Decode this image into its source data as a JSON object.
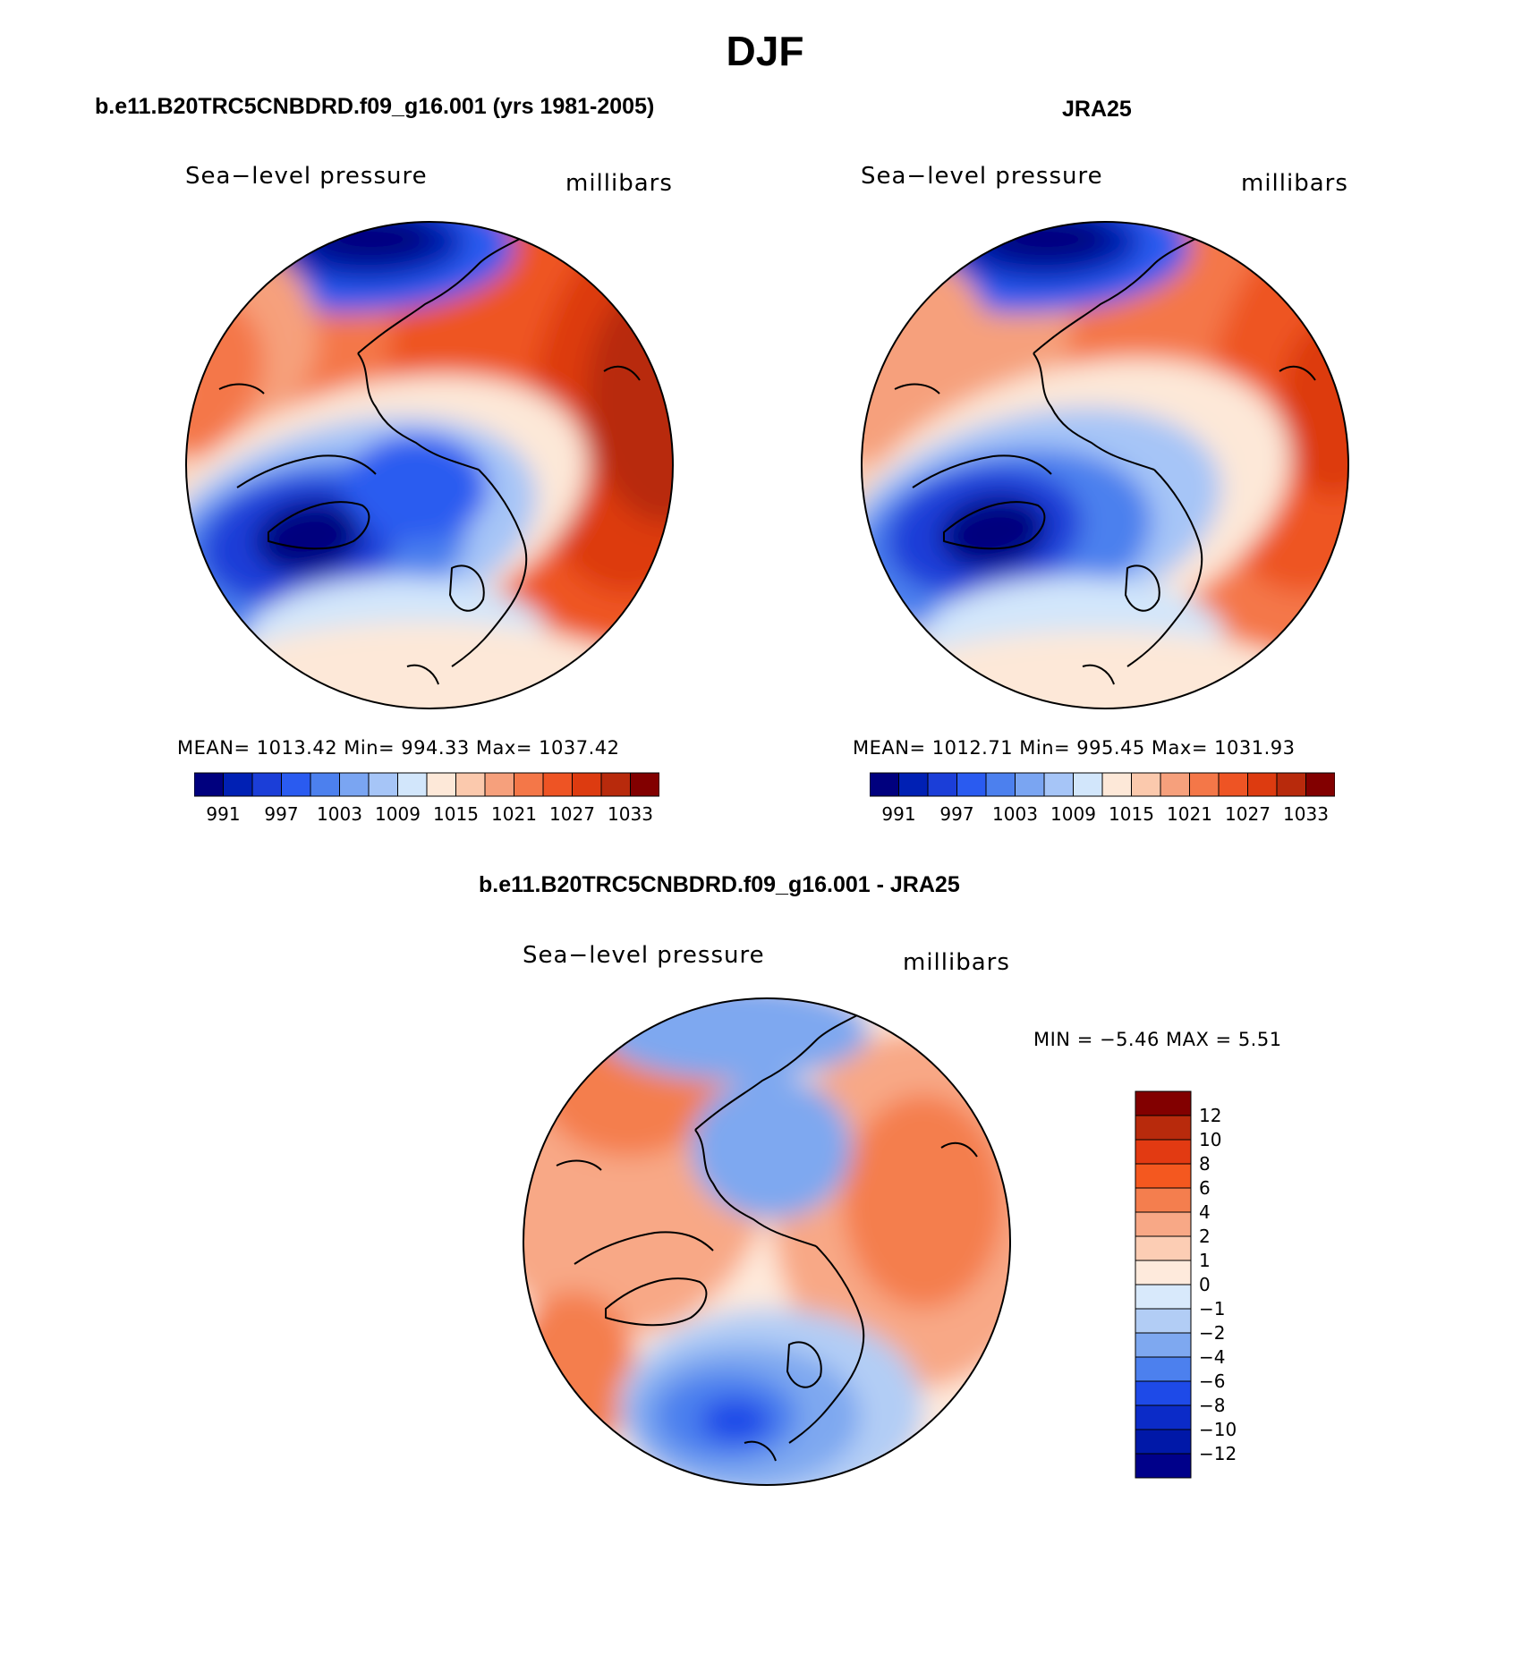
{
  "title": "DJF",
  "maps": [
    {
      "panel_title": "b.e11.B20TRC5CNBDRD.f09_g16.001 (yrs 1981-2005)",
      "variable": "Sea−level pressure",
      "units": "millibars",
      "stats": "MEAN= 1013.42   Min= 994.33   Max= 1037.42",
      "colorbar_labels": [
        "991",
        "997",
        "1003",
        "1009",
        "1015",
        "1021",
        "1027",
        "1033"
      ]
    },
    {
      "panel_title": "JRA25",
      "variable": "Sea−level pressure",
      "units": "millibars",
      "stats": "MEAN= 1012.71   Min= 995.45   Max= 1031.93",
      "colorbar_labels": [
        "991",
        "997",
        "1003",
        "1009",
        "1015",
        "1021",
        "1027",
        "1033"
      ]
    },
    {
      "panel_title": "b.e11.B20TRC5CNBDRD.f09_g16.001 - JRA25",
      "variable": "Sea−level pressure",
      "units": "millibars",
      "stats": "MIN =   −5.46  MAX =     5.51",
      "colorbar_labels": [
        "12",
        "10",
        "8",
        "6",
        "4",
        "2",
        "1",
        "0",
        "−1",
        "−2",
        "−4",
        "−6",
        "−8",
        "−10",
        "−12"
      ]
    }
  ],
  "colors": {
    "abs_scale": [
      "#00007e",
      "#0020b4",
      "#1b3ed8",
      "#2a5bf0",
      "#4c80ee",
      "#7aa5f2",
      "#a6c5f7",
      "#d2e6fb",
      "#fde8d8",
      "#fbc9ad",
      "#f6a07c",
      "#f47748",
      "#ee5424",
      "#dd3b10",
      "#b82a0c",
      "#820000"
    ],
    "diff_scale_top_to_bottom": [
      "#820000",
      "#b82a0c",
      "#e23a12",
      "#f4581f",
      "#f47e4e",
      "#f8a886",
      "#fccdb4",
      "#feeadc",
      "#d8e9fb",
      "#b2cdf5",
      "#7ea8f0",
      "#4c80ee",
      "#1e4ae8",
      "#0b2bc8",
      "#0018a8",
      "#00008a"
    ]
  }
}
